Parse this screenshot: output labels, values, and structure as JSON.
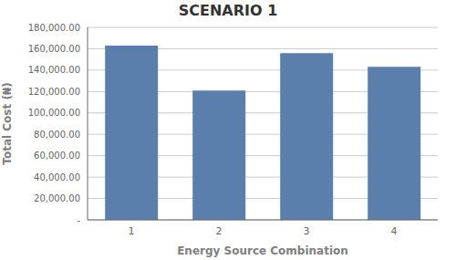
{
  "chart_data": {
    "type": "bar",
    "title": "SCENARIO 1",
    "xlabel": "Energy Source Combination",
    "ylabel": "Total Cost (₦)",
    "categories": [
      "1",
      "2",
      "3",
      "4"
    ],
    "values": [
      163000,
      121000,
      156000,
      143000
    ],
    "color": "#5b7fad",
    "ylim": [
      0,
      180000
    ],
    "yticks": [
      {
        "value": 0,
        "label": "-"
      },
      {
        "value": 20000,
        "label": "20,000.00"
      },
      {
        "value": 40000,
        "label": "40,000.00"
      },
      {
        "value": 60000,
        "label": "60,000.00"
      },
      {
        "value": 80000,
        "label": "80,000.00"
      },
      {
        "value": 100000,
        "label": "100,000.00"
      },
      {
        "value": 120000,
        "label": "120,000.00"
      },
      {
        "value": 140000,
        "label": "140,000.00"
      },
      {
        "value": 160000,
        "label": "160,000.00"
      },
      {
        "value": 180000,
        "label": "180,000.00"
      }
    ],
    "grid": true
  }
}
